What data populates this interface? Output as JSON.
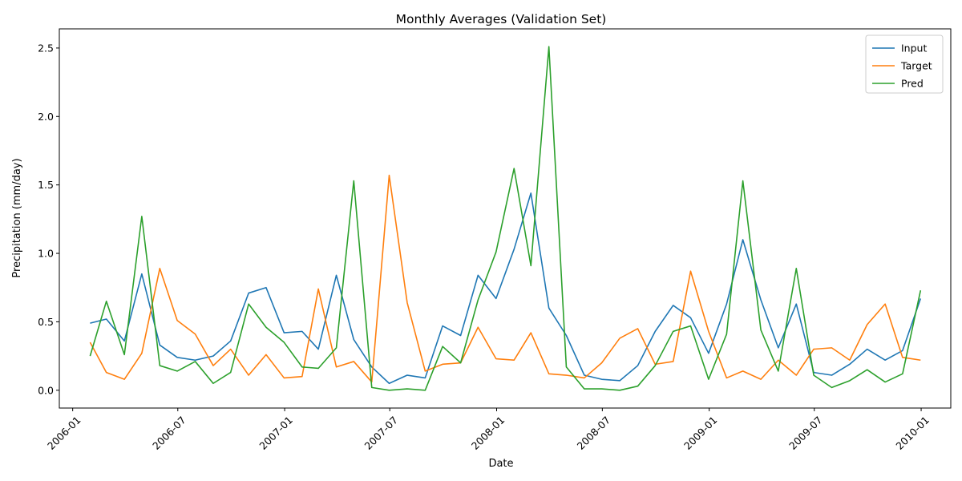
{
  "chart_data": {
    "type": "line",
    "title": "Monthly Averages (Validation Set)",
    "xlabel": "Date",
    "ylabel": "Precipitation (mm/day)",
    "ylim": [
      -0.13,
      2.64
    ],
    "yticks": [
      0.0,
      0.5,
      1.0,
      1.5,
      2.0,
      2.5
    ],
    "ytick_labels": [
      "0.0",
      "0.5",
      "1.0",
      "1.5",
      "2.0",
      "2.5"
    ],
    "xlim": [
      "2005-12-09",
      "2010-02-21"
    ],
    "xticks": [
      "2006-01-01",
      "2006-07-01",
      "2007-01-01",
      "2007-07-01",
      "2008-01-01",
      "2008-07-01",
      "2009-01-01",
      "2009-07-01",
      "2010-01-01"
    ],
    "xtick_labels": [
      "2006-01",
      "2006-07",
      "2007-01",
      "2007-07",
      "2008-01",
      "2008-07",
      "2009-01",
      "2009-07",
      "2010-01"
    ],
    "legend_position": "top-right",
    "x": [
      "2006-01-31",
      "2006-02-28",
      "2006-03-31",
      "2006-04-30",
      "2006-05-31",
      "2006-06-30",
      "2006-07-31",
      "2006-08-31",
      "2006-09-30",
      "2006-10-31",
      "2006-11-30",
      "2006-12-31",
      "2007-01-31",
      "2007-02-28",
      "2007-03-31",
      "2007-04-30",
      "2007-05-31",
      "2007-06-30",
      "2007-07-31",
      "2007-08-31",
      "2007-09-30",
      "2007-10-31",
      "2007-11-30",
      "2007-12-31",
      "2008-01-31",
      "2008-02-29",
      "2008-03-31",
      "2008-04-30",
      "2008-05-31",
      "2008-06-30",
      "2008-07-31",
      "2008-08-31",
      "2008-09-30",
      "2008-10-31",
      "2008-11-30",
      "2008-12-31",
      "2009-01-31",
      "2009-02-28",
      "2009-03-31",
      "2009-04-30",
      "2009-05-31",
      "2009-06-30",
      "2009-07-31",
      "2009-08-31",
      "2009-09-30",
      "2009-10-31",
      "2009-11-30",
      "2009-12-31"
    ],
    "series": [
      {
        "name": "Input",
        "color": "#1f77b4",
        "values": [
          0.49,
          0.52,
          0.36,
          0.85,
          0.33,
          0.24,
          0.22,
          0.25,
          0.36,
          0.71,
          0.75,
          0.42,
          0.43,
          0.3,
          0.84,
          0.37,
          0.17,
          0.05,
          0.11,
          0.09,
          0.47,
          0.4,
          0.84,
          0.67,
          1.03,
          1.44,
          0.6,
          0.4,
          0.11,
          0.08,
          0.07,
          0.18,
          0.43,
          0.62,
          0.53,
          0.27,
          0.63,
          1.1,
          0.66,
          0.31,
          0.63,
          0.13,
          0.11,
          0.19,
          0.3,
          0.22,
          0.29,
          0.67
        ]
      },
      {
        "name": "Target",
        "color": "#ff7f0e",
        "values": [
          0.35,
          0.13,
          0.08,
          0.27,
          0.89,
          0.51,
          0.41,
          0.18,
          0.3,
          0.11,
          0.26,
          0.09,
          0.1,
          0.74,
          0.17,
          0.21,
          0.06,
          1.57,
          0.64,
          0.14,
          0.19,
          0.2,
          0.46,
          0.23,
          0.22,
          0.42,
          0.12,
          0.11,
          0.09,
          0.2,
          0.38,
          0.45,
          0.19,
          0.21,
          0.87,
          0.43,
          0.09,
          0.14,
          0.08,
          0.22,
          0.11,
          0.3,
          0.31,
          0.22,
          0.48,
          0.63,
          0.24,
          0.22
        ]
      },
      {
        "name": "Pred",
        "color": "#2ca02c",
        "values": [
          0.25,
          0.65,
          0.26,
          1.27,
          0.18,
          0.14,
          0.21,
          0.05,
          0.13,
          0.63,
          0.46,
          0.35,
          0.17,
          0.16,
          0.31,
          1.53,
          0.02,
          0.0,
          0.01,
          0.0,
          0.32,
          0.2,
          0.66,
          1.01,
          1.62,
          0.91,
          2.51,
          0.17,
          0.01,
          0.01,
          0.0,
          0.03,
          0.18,
          0.43,
          0.47,
          0.08,
          0.41,
          1.53,
          0.44,
          0.14,
          0.89,
          0.11,
          0.02,
          0.07,
          0.15,
          0.06,
          0.12,
          0.73
        ]
      }
    ]
  }
}
